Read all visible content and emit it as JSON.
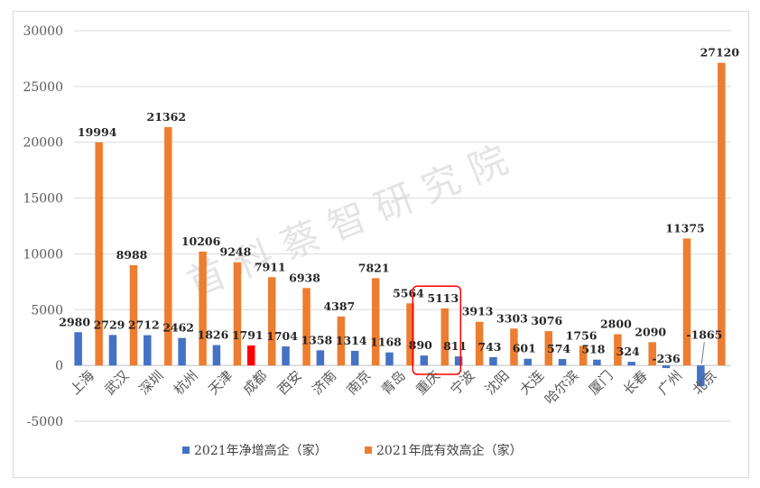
{
  "chart_data": {
    "type": "bar",
    "categories": [
      "上海",
      "武汉",
      "深圳",
      "杭州",
      "天津",
      "成都",
      "西安",
      "济南",
      "南京",
      "青岛",
      "重庆",
      "宁波",
      "沈阳",
      "大连",
      "哈尔滨",
      "厦门",
      "长春",
      "广州",
      "北京"
    ],
    "series": [
      {
        "name": "2021年净增高企（家）",
        "color": "#4472c4",
        "values": [
          2980,
          2729,
          2712,
          2462,
          1826,
          1791,
          1704,
          1358,
          1314,
          1168,
          890,
          811,
          743,
          601,
          574,
          518,
          324,
          -236,
          -1865
        ]
      },
      {
        "name": "2021年底有效高企（家）",
        "color": "#ed7d31",
        "values": [
          19994,
          8988,
          21362,
          10206,
          9248,
          7911,
          6938,
          4387,
          7821,
          5564,
          5113,
          3913,
          3303,
          3076,
          1756,
          2800,
          2090,
          11375,
          27120
        ]
      }
    ],
    "highlight": {
      "category": "成都",
      "series_index": 0,
      "color": "#ff0000"
    },
    "box_highlight": {
      "category": "重庆",
      "color": "#ff0000"
    },
    "ylim": [
      -5000,
      30000
    ],
    "yticks": [
      -5000,
      0,
      5000,
      10000,
      15000,
      20000,
      25000,
      30000
    ],
    "grid": true,
    "legend_position": "bottom",
    "watermark": "首科蔡智研究院"
  }
}
